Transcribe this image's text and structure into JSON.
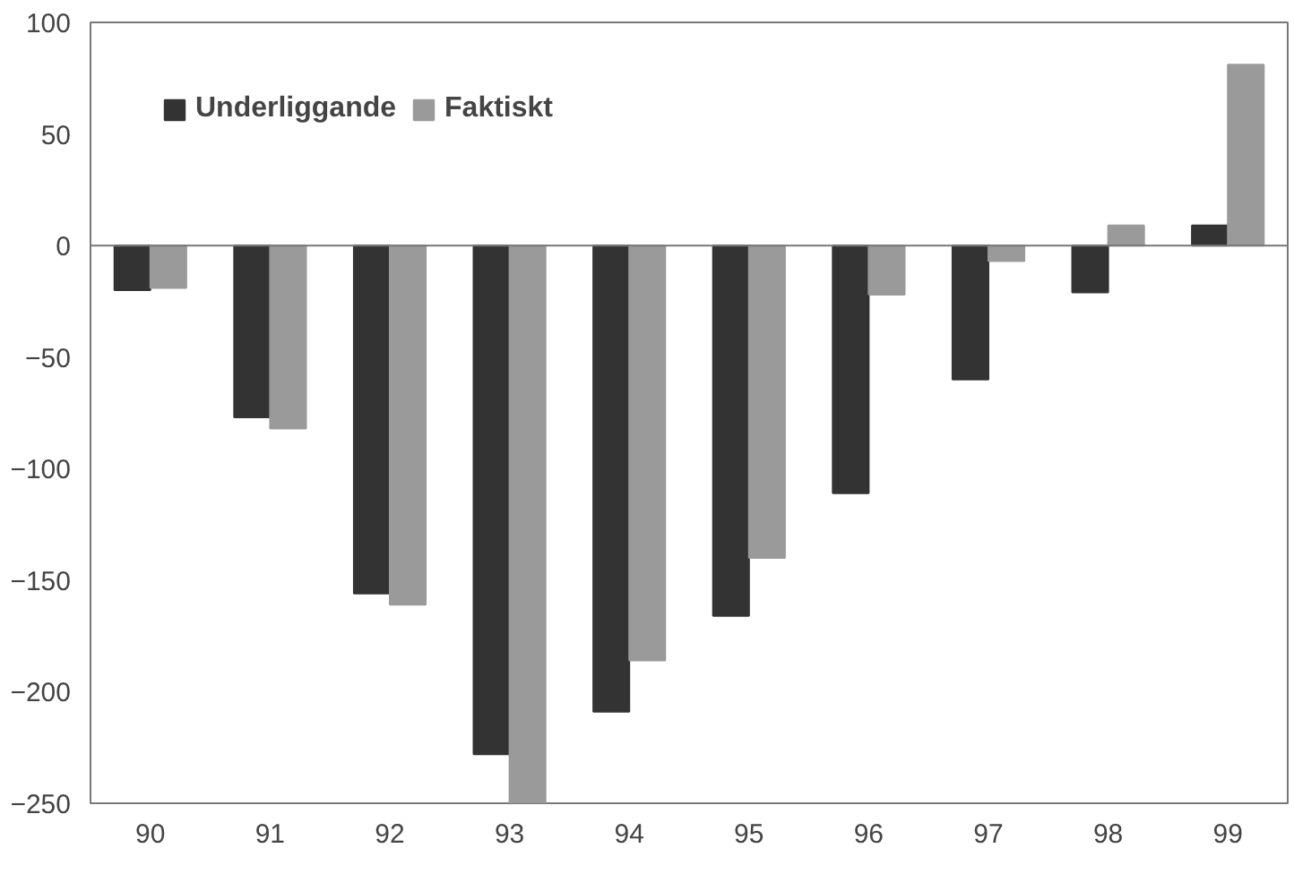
{
  "chart_data": {
    "type": "bar",
    "categories": [
      "90",
      "91",
      "92",
      "93",
      "94",
      "95",
      "96",
      "97",
      "98",
      "99"
    ],
    "series": [
      {
        "name": "Underliggande",
        "color": "#333333",
        "values": [
          -20,
          -77,
          -156,
          -228,
          -209,
          -166,
          -111,
          -60,
          -21,
          9
        ]
      },
      {
        "name": "Faktiskt",
        "color": "#9a9a9a",
        "values": [
          -19,
          -82,
          -161,
          -250,
          -186,
          -140,
          -22,
          -7,
          9,
          81
        ]
      }
    ],
    "ylim": [
      -250,
      100
    ],
    "yticks": [
      -250,
      -200,
      -150,
      -100,
      -50,
      0,
      50,
      100
    ],
    "ref_lines": [
      {
        "axis": "y",
        "value": 0,
        "color": "#777777"
      }
    ],
    "legend": "top left"
  }
}
